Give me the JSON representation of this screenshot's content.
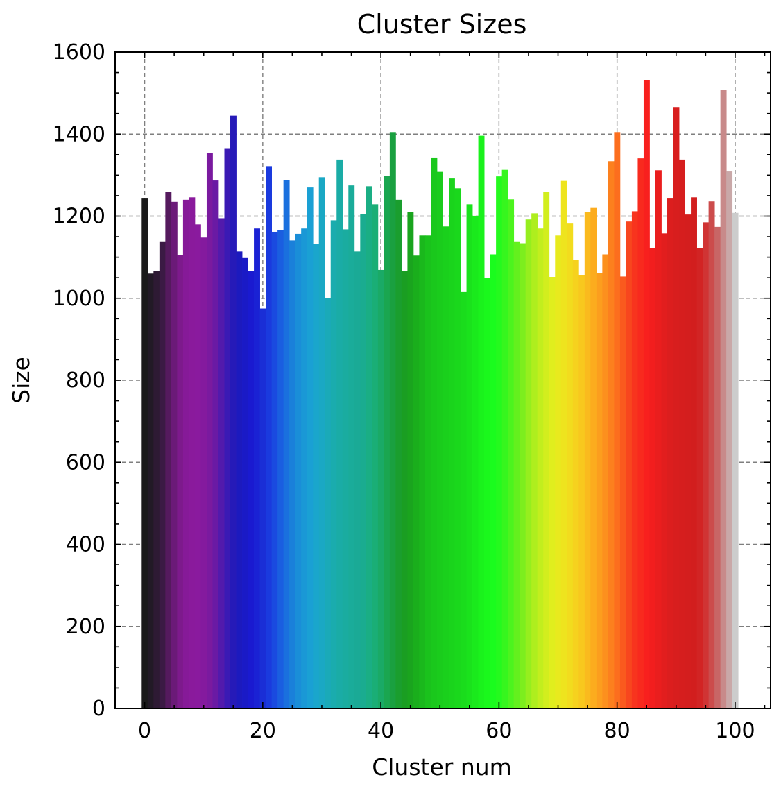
{
  "chart_data": {
    "type": "bar",
    "title": "Cluster Sizes",
    "xlabel": "Cluster num",
    "ylabel": "Size",
    "xlim": [
      -5,
      106
    ],
    "ylim": [
      0,
      1600
    ],
    "xticks": [
      0,
      20,
      40,
      60,
      80,
      100
    ],
    "yticks": [
      0,
      200,
      400,
      600,
      800,
      1000,
      1200,
      1400,
      1600
    ],
    "grid": true,
    "x": [
      0,
      1,
      2,
      3,
      4,
      5,
      6,
      7,
      8,
      9,
      10,
      11,
      12,
      13,
      14,
      15,
      16,
      17,
      18,
      19,
      20,
      21,
      22,
      23,
      24,
      25,
      26,
      27,
      28,
      29,
      30,
      31,
      32,
      33,
      34,
      35,
      36,
      37,
      38,
      39,
      40,
      41,
      42,
      43,
      44,
      45,
      46,
      47,
      48,
      49,
      50,
      51,
      52,
      53,
      54,
      55,
      56,
      57,
      58,
      59,
      60,
      61,
      62,
      63,
      64,
      65,
      66,
      67,
      68,
      69,
      70,
      71,
      72,
      73,
      74,
      75,
      76,
      77,
      78,
      79,
      80,
      81,
      82,
      83,
      84,
      85,
      86,
      87,
      88,
      89,
      90,
      91,
      92,
      93,
      94,
      95,
      96,
      97,
      98,
      99,
      100
    ],
    "values": [
      1243,
      1060,
      1067,
      1137,
      1260,
      1235,
      1106,
      1240,
      1246,
      1180,
      1148,
      1354,
      1287,
      1195,
      1364,
      1445,
      1114,
      1098,
      1066,
      1170,
      975,
      1322,
      1162,
      1166,
      1288,
      1141,
      1157,
      1170,
      1270,
      1132,
      1295,
      1001,
      1190,
      1338,
      1168,
      1275,
      1114,
      1205,
      1273,
      1229,
      1069,
      1298,
      1405,
      1240,
      1066,
      1211,
      1104,
      1153,
      1153,
      1343,
      1308,
      1175,
      1292,
      1268,
      1015,
      1229,
      1201,
      1396,
      1050,
      1107,
      1297,
      1313,
      1241,
      1137,
      1134,
      1192,
      1207,
      1170,
      1259,
      1052,
      1153,
      1286,
      1182,
      1094,
      1056,
      1210,
      1220,
      1062,
      1107,
      1334,
      1405,
      1053,
      1187,
      1212,
      1341,
      1531,
      1123,
      1312,
      1158,
      1243,
      1466,
      1338,
      1204,
      1246,
      1122,
      1185,
      1236,
      1174,
      1508,
      1309,
      1208
    ],
    "colors": [
      "#1a1a1a",
      "#221a26",
      "#2e1a34",
      "#3b1a44",
      "#551a5e",
      "#6b1a78",
      "#7d1a8c",
      "#861a98",
      "#8a1a9c",
      "#8a1a9e",
      "#841a9e",
      "#7a1a9f",
      "#6a1aa4",
      "#521aac",
      "#3a1ab4",
      "#261ab8",
      "#1c1abe",
      "#1a1ac6",
      "#1a1ad0",
      "#1a22d4",
      "#1a2ed6",
      "#1a3ade",
      "#1a4ae0",
      "#1a5ee0",
      "#1a70de",
      "#1a80da",
      "#1a8ed8",
      "#1a98d6",
      "#1aa0d4",
      "#1aa6cc",
      "#1aa8c4",
      "#1aaab8",
      "#1aacae",
      "#1aaca6",
      "#1aaca0",
      "#1aac9a",
      "#1aaa96",
      "#1aac90",
      "#1aae84",
      "#1aae76",
      "#1aaa66",
      "#1aa650",
      "#1aa040",
      "#1a9e2e",
      "#1a9e22",
      "#1aa41e",
      "#1aae1c",
      "#1ab81c",
      "#1ac21c",
      "#1ac81c",
      "#1acc1c",
      "#1ad01c",
      "#1ad41c",
      "#1ad81c",
      "#1adc1c",
      "#1ae21c",
      "#1aea1c",
      "#1af21c",
      "#1af81c",
      "#1afc1e",
      "#24fa1e",
      "#36f61e",
      "#4cf41e",
      "#64f01e",
      "#7cee1e",
      "#96ee1e",
      "#aeee1e",
      "#c2ee1e",
      "#d2ee1e",
      "#e0ee1e",
      "#e8ea1e",
      "#eee41e",
      "#f2dc1e",
      "#f6d21e",
      "#f8c81e",
      "#faba1e",
      "#fcac1e",
      "#fc9e1e",
      "#fc901e",
      "#fc801e",
      "#fc6e1e",
      "#fa5a1e",
      "#f8461e",
      "#f8341e",
      "#f82a1e",
      "#f8201e",
      "#f21e1e",
      "#ea1e1e",
      "#e21e1e",
      "#dc1e1e",
      "#d81e1e",
      "#d61e1e",
      "#d41e1e",
      "#d21e1e",
      "#d22424",
      "#d03434",
      "#cc4c4c",
      "#c86666",
      "#c88a8a",
      "#c9a8a8",
      "#cccccc"
    ]
  }
}
